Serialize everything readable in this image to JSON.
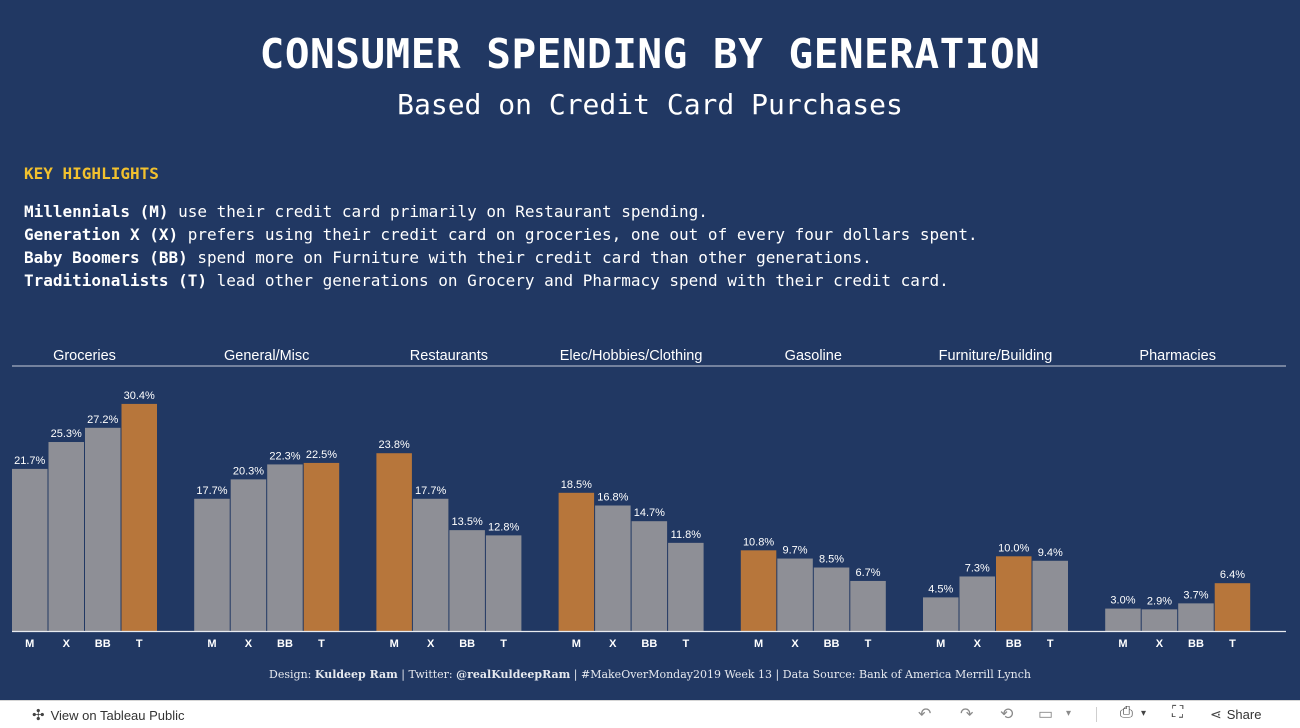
{
  "title": "CONSUMER SPENDING BY GENERATION",
  "subtitle": "Based on Credit Card Purchases",
  "key_highlights": {
    "heading": "KEY HIGHLIGHTS",
    "lines": [
      {
        "bold": "Millennials (M)",
        "text": " use their credit card primarily on Restaurant spending."
      },
      {
        "bold": "Generation X (X)",
        "text": " prefers using their credit card on groceries, one out of every four dollars spent."
      },
      {
        "bold": "Baby Boomers (BB)",
        "text": " spend more on Furniture with their credit card than other generations."
      },
      {
        "bold": "Traditionalists (T)",
        "text": " lead other generations on Grocery and Pharmacy spend with their credit card."
      }
    ]
  },
  "chart_data": {
    "type": "bar",
    "categories": [
      "Groceries",
      "General/Misc",
      "Restaurants",
      "Elec/Hobbies/Clothing",
      "Gasoline",
      "Furniture/Building",
      "Pharmacies"
    ],
    "generations": [
      "M",
      "X",
      "BB",
      "T"
    ],
    "values": [
      [
        21.7,
        25.3,
        27.2,
        30.4
      ],
      [
        17.7,
        20.3,
        22.3,
        22.5
      ],
      [
        23.8,
        17.7,
        13.5,
        12.8
      ],
      [
        18.5,
        16.8,
        14.7,
        11.8
      ],
      [
        10.8,
        9.7,
        8.5,
        6.7
      ],
      [
        4.5,
        7.3,
        10.0,
        9.4
      ],
      [
        3.0,
        2.9,
        3.7,
        6.4
      ]
    ],
    "labels": [
      [
        "21.7%",
        "25.3%",
        "27.2%",
        "30.4%"
      ],
      [
        "17.7%",
        "20.3%",
        "22.3%",
        "22.5%"
      ],
      [
        "23.8%",
        "17.7%",
        "13.5%",
        "12.8%"
      ],
      [
        "18.5%",
        "16.8%",
        "14.7%",
        "11.8%"
      ],
      [
        "10.8%",
        "9.7%",
        "8.5%",
        "6.7%"
      ],
      [
        "4.5%",
        "7.3%",
        "10.0%",
        "9.4%"
      ],
      [
        "3.0%",
        "2.9%",
        "3.7%",
        "6.4%"
      ]
    ],
    "highlighted_index": [
      3,
      3,
      0,
      0,
      0,
      2,
      3
    ],
    "colors": {
      "default": "#8e8f96",
      "highlight": "#b7763b",
      "background": "#213863",
      "label": "#ffffff"
    },
    "ylim": [
      0,
      32
    ],
    "grid": false
  },
  "footer": {
    "design_label": "Design: ",
    "designer": "Kuldeep Ram",
    "twitter_label": " | Twitter: ",
    "twitter": "@realKuldeepRam",
    "rest": " | #MakeOverMonday2019 Week 13 | Data Source: Bank of America Merrill Lynch"
  },
  "toolbar": {
    "view_label": "View on Tableau Public",
    "share_label": "Share",
    "icons": [
      "tableau-logo-icon",
      "undo-icon",
      "redo-icon",
      "revert-icon",
      "refresh-icon",
      "pause-icon",
      "download-icon",
      "fullscreen-icon",
      "share-icon"
    ]
  }
}
